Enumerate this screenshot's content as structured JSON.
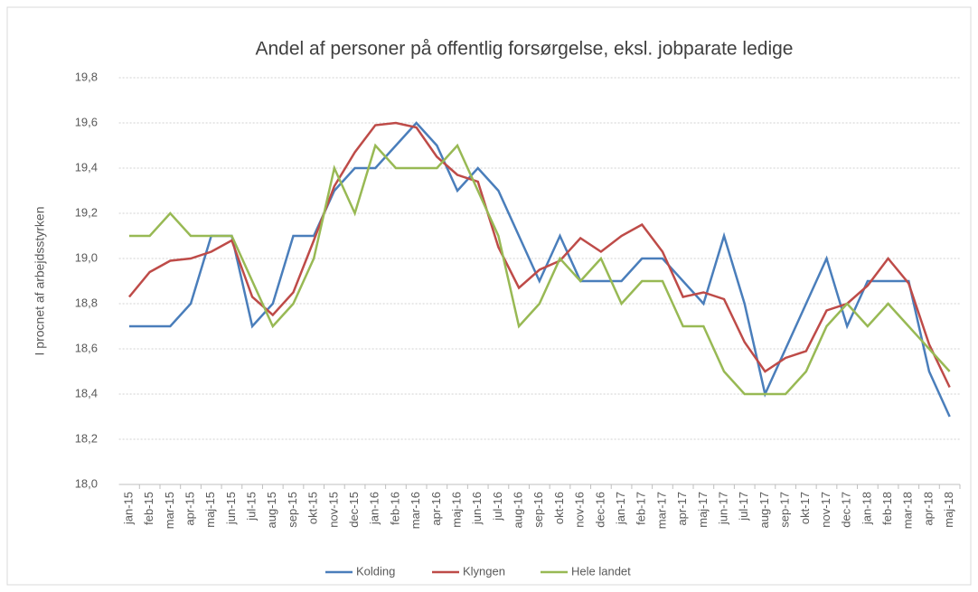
{
  "chart_data": {
    "type": "line",
    "title": "Andel af personer på offentlig forsørgelse, eksl. jobparate ledige",
    "y_label": "I procnet af arbejdsstyrken",
    "categories": [
      "jan-15",
      "feb-15",
      "mar-15",
      "apr-15",
      "maj-15",
      "jun-15",
      "jul-15",
      "aug-15",
      "sep-15",
      "okt-15",
      "nov-15",
      "dec-15",
      "jan-16",
      "feb-16",
      "mar-16",
      "apr-16",
      "maj-16",
      "jun-16",
      "jul-16",
      "aug-16",
      "sep-16",
      "okt-16",
      "nov-16",
      "dec-16",
      "jan-17",
      "feb-17",
      "mar-17",
      "apr-17",
      "maj-17",
      "jun-17",
      "jul-17",
      "aug-17",
      "sep-17",
      "okt-17",
      "nov-17",
      "dec-17",
      "jan-18",
      "feb-18",
      "mar-18",
      "apr-18",
      "maj-18"
    ],
    "series": [
      {
        "name": "Kolding",
        "color": "#4a7ebb",
        "values": [
          18.7,
          18.7,
          18.7,
          18.8,
          19.1,
          19.1,
          18.7,
          18.8,
          19.1,
          19.1,
          19.3,
          19.4,
          19.4,
          19.5,
          19.6,
          19.5,
          19.3,
          19.4,
          19.3,
          19.1,
          18.9,
          19.1,
          18.9,
          18.9,
          18.9,
          19.0,
          19.0,
          18.9,
          18.8,
          19.1,
          18.8,
          18.4,
          18.6,
          18.8,
          19.0,
          18.7,
          18.9,
          18.9,
          18.9,
          18.5,
          18.3
        ]
      },
      {
        "name": "Klyngen",
        "color": "#be4b48",
        "values": [
          18.83,
          18.94,
          18.99,
          19.0,
          19.03,
          19.08,
          18.83,
          18.75,
          18.85,
          19.08,
          19.32,
          19.47,
          19.59,
          19.6,
          19.58,
          19.45,
          19.37,
          19.34,
          19.05,
          18.87,
          18.95,
          18.99,
          19.09,
          19.03,
          19.1,
          19.15,
          19.03,
          18.83,
          18.85,
          18.82,
          18.63,
          18.5,
          18.56,
          18.59,
          18.77,
          18.8,
          18.88,
          19.0,
          18.89,
          18.62,
          18.43
        ]
      },
      {
        "name": "Hele landet",
        "color": "#98b954",
        "values": [
          19.1,
          19.1,
          19.2,
          19.1,
          19.1,
          19.1,
          18.9,
          18.7,
          18.8,
          19.0,
          19.4,
          19.2,
          19.5,
          19.4,
          19.4,
          19.4,
          19.5,
          19.3,
          19.1,
          18.7,
          18.8,
          19.0,
          18.9,
          19.0,
          18.8,
          18.9,
          18.9,
          18.7,
          18.7,
          18.5,
          18.4,
          18.4,
          18.4,
          18.5,
          18.7,
          18.8,
          18.7,
          18.8,
          18.7,
          18.6,
          18.5
        ]
      }
    ],
    "ylim": [
      18.0,
      19.8
    ],
    "yticks": [
      {
        "value": 18.0,
        "label": "18,0"
      },
      {
        "value": 18.2,
        "label": "18,2"
      },
      {
        "value": 18.4,
        "label": "18,4"
      },
      {
        "value": 18.6,
        "label": "18,6"
      },
      {
        "value": 18.8,
        "label": "18,8"
      },
      {
        "value": 19.0,
        "label": "19,0"
      },
      {
        "value": 19.2,
        "label": "19,2"
      },
      {
        "value": 19.4,
        "label": "19,4"
      },
      {
        "value": 19.6,
        "label": "19,6"
      },
      {
        "value": 19.8,
        "label": "19,8"
      }
    ],
    "grid": true,
    "legend": "bottom"
  }
}
